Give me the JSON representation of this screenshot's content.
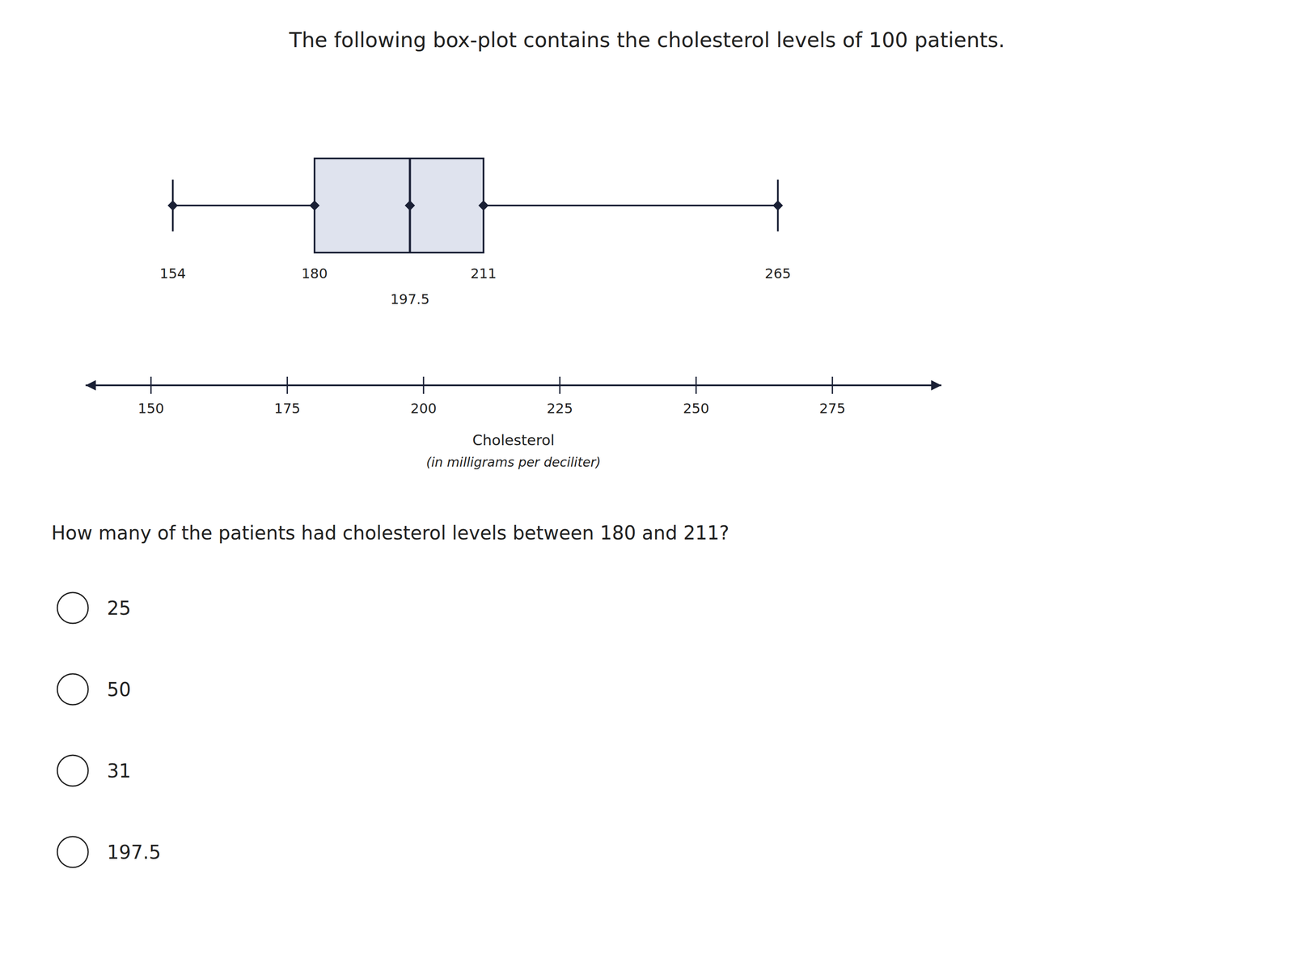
{
  "chart_data": {
    "type": "box",
    "title": "The following box-plot contains the cholesterol levels of 100 patients.",
    "xlabel": [
      "Cholesterol",
      "(in milligrams per deciliter)"
    ],
    "min": 154,
    "q1": 180,
    "median": 197.5,
    "q3": 211,
    "max": 265,
    "xlim": [
      138,
      295
    ],
    "xticks": [
      150,
      175,
      200,
      225,
      250,
      275
    ],
    "data_labels": true,
    "marker": "diamond",
    "color": "#1a2035",
    "question": "How many of the patients had cholesterol levels between 180 and 211?",
    "options": [
      "25",
      "50",
      "31",
      "197.5"
    ]
  }
}
